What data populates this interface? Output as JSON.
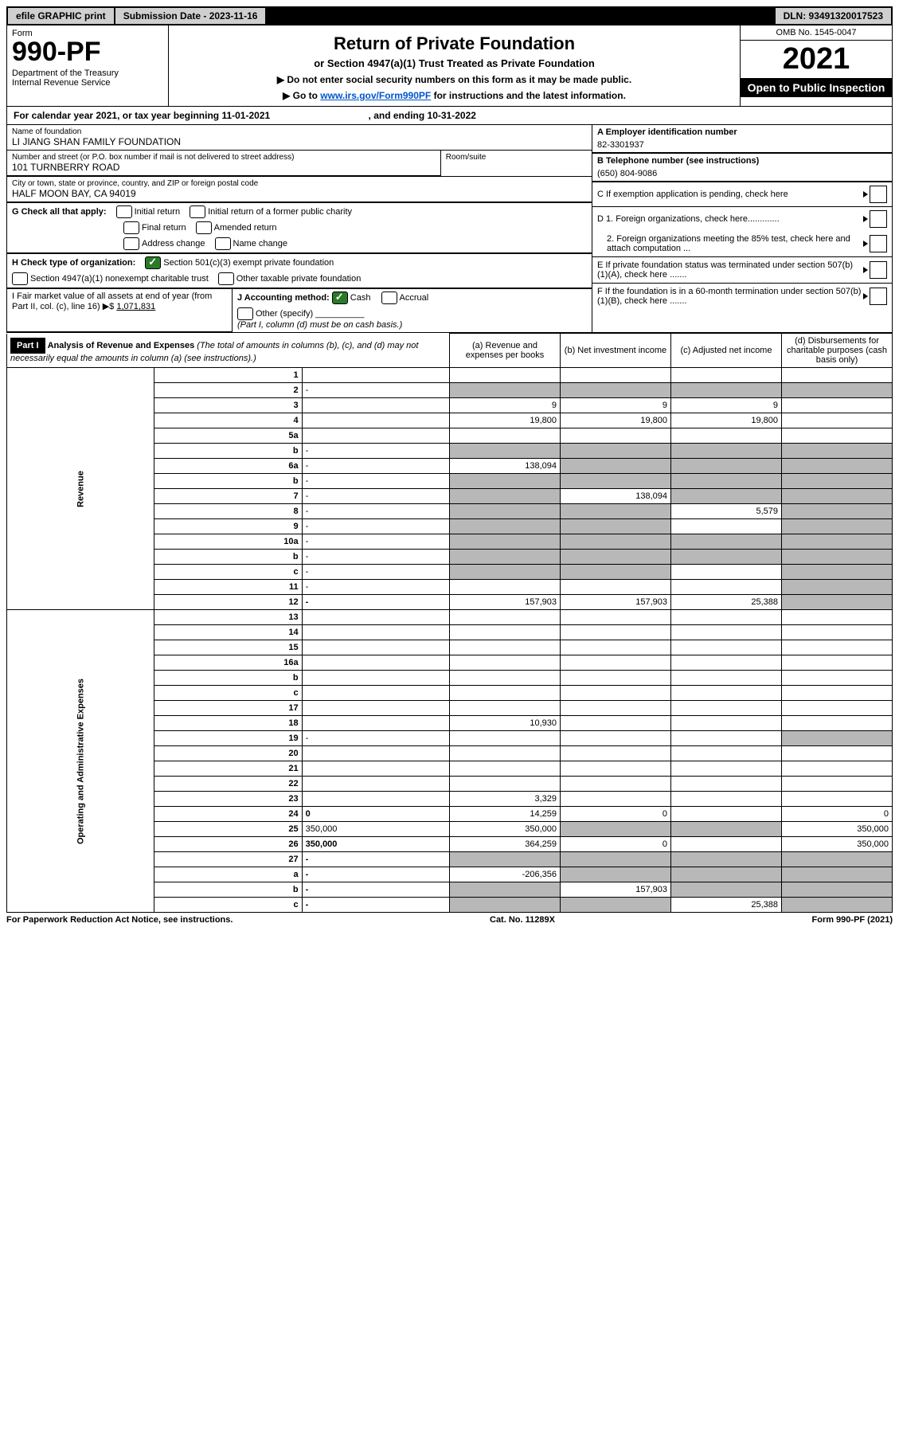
{
  "topbar": {
    "efile": "efile GRAPHIC print",
    "submission": "Submission Date - 2023-11-16",
    "dln": "DLN: 93491320017523"
  },
  "header": {
    "form_label": "Form",
    "form_num": "990-PF",
    "dept": "Department of the Treasury\nInternal Revenue Service",
    "title": "Return of Private Foundation",
    "subtitle": "or Section 4947(a)(1) Trust Treated as Private Foundation",
    "instr1": "▶ Do not enter social security numbers on this form as it may be made public.",
    "instr2": "▶ Go to ",
    "instr2_link": "www.irs.gov/Form990PF",
    "instr2_tail": " for instructions and the latest information.",
    "omb": "OMB No. 1545-0047",
    "year": "2021",
    "open": "Open to Public Inspection"
  },
  "cal": {
    "prefix": "For calendar year 2021, or tax year beginning ",
    "begin": "11-01-2021",
    "mid": " , and ending ",
    "end": "10-31-2022"
  },
  "name": {
    "label": "Name of foundation",
    "value": "LI JIANG SHAN FAMILY FOUNDATION"
  },
  "addr": {
    "label": "Number and street (or P.O. box number if mail is not delivered to street address)",
    "value": "101 TURNBERRY ROAD",
    "room_label": "Room/suite"
  },
  "city": {
    "label": "City or town, state or province, country, and ZIP or foreign postal code",
    "value": "HALF MOON BAY, CA  94019"
  },
  "rightA": {
    "label": "A Employer identification number",
    "value": "82-3301937"
  },
  "rightB": {
    "label": "B Telephone number (see instructions)",
    "value": "(650) 804-9086"
  },
  "rightC": "C If exemption application is pending, check here",
  "rightD1": "D 1. Foreign organizations, check here.............",
  "rightD2": "2. Foreign organizations meeting the 85% test, check here and attach computation ...",
  "rightE": "E If private foundation status was terminated under section 507(b)(1)(A), check here .......",
  "rightF": "F If the foundation is in a 60-month termination under section 507(b)(1)(B), check here .......",
  "G": {
    "label": "G Check all that apply:",
    "opts": [
      "Initial return",
      "Initial return of a former public charity",
      "Final return",
      "Amended return",
      "Address change",
      "Name change"
    ]
  },
  "H": {
    "label": "H Check type of organization:",
    "o1": "Section 501(c)(3) exempt private foundation",
    "o2": "Section 4947(a)(1) nonexempt charitable trust",
    "o3": "Other taxable private foundation"
  },
  "I": {
    "label": "I Fair market value of all assets at end of year (from Part II, col. (c), line 16) ▶$",
    "value": "1,071,831"
  },
  "J": {
    "label": "J Accounting method:",
    "cash": "Cash",
    "accrual": "Accrual",
    "other": "Other (specify)",
    "note": "(Part I, column (d) must be on cash basis.)"
  },
  "part1": {
    "label": "Part I",
    "title": "Analysis of Revenue and Expenses",
    "sub": "(The total of amounts in columns (b), (c), and (d) may not necessarily equal the amounts in column (a) (see instructions).)",
    "col_a": "(a) Revenue and expenses per books",
    "col_b": "(b) Net investment income",
    "col_c": "(c) Adjusted net income",
    "col_d": "(d) Disbursements for charitable purposes (cash basis only)"
  },
  "vlabels": {
    "rev": "Revenue",
    "exp": "Operating and Administrative Expenses"
  },
  "rows": [
    {
      "n": "1",
      "d": "",
      "a": "",
      "b": "",
      "c": ""
    },
    {
      "n": "2",
      "d": "-",
      "a": "-",
      "b": "-",
      "c": "-",
      "shade_all": true
    },
    {
      "n": "3",
      "d": "",
      "a": "9",
      "b": "9",
      "c": "9"
    },
    {
      "n": "4",
      "d": "",
      "a": "19,800",
      "b": "19,800",
      "c": "19,800"
    },
    {
      "n": "5a",
      "d": "",
      "a": "",
      "b": "",
      "c": ""
    },
    {
      "n": "b",
      "d": "-",
      "a": "-",
      "b": "-",
      "c": "-",
      "shade_all": true,
      "inset": true
    },
    {
      "n": "6a",
      "d": "-",
      "a": "138,094",
      "b": "-",
      "c": "-",
      "shade_bcd": true
    },
    {
      "n": "b",
      "d": "-",
      "a": "-",
      "b": "-",
      "c": "-",
      "shade_all": true
    },
    {
      "n": "7",
      "d": "-",
      "a": "-",
      "b": "138,094",
      "c": "-",
      "shade_acd": true
    },
    {
      "n": "8",
      "d": "-",
      "a": "-",
      "b": "-",
      "c": "5,579",
      "shade_abd": true
    },
    {
      "n": "9",
      "d": "-",
      "a": "-",
      "b": "-",
      "c": "",
      "shade_abd": true
    },
    {
      "n": "10a",
      "d": "-",
      "a": "-",
      "b": "-",
      "c": "-",
      "shade_all": true,
      "inset": true
    },
    {
      "n": "b",
      "d": "-",
      "a": "-",
      "b": "-",
      "c": "-",
      "shade_all": true
    },
    {
      "n": "c",
      "d": "-",
      "a": "-",
      "b": "-",
      "c": "",
      "shade_abd": true
    },
    {
      "n": "11",
      "d": "-",
      "a": "",
      "b": "",
      "c": "",
      "shade_d": true
    },
    {
      "n": "12",
      "d": "-",
      "a": "157,903",
      "b": "157,903",
      "c": "25,388",
      "bold": true,
      "shade_d": true
    },
    {
      "n": "13",
      "d": "",
      "a": "",
      "b": "",
      "c": ""
    },
    {
      "n": "14",
      "d": "",
      "a": "",
      "b": "",
      "c": ""
    },
    {
      "n": "15",
      "d": "",
      "a": "",
      "b": "",
      "c": ""
    },
    {
      "n": "16a",
      "d": "",
      "a": "",
      "b": "",
      "c": ""
    },
    {
      "n": "b",
      "d": "",
      "a": "",
      "b": "",
      "c": ""
    },
    {
      "n": "c",
      "d": "",
      "a": "",
      "b": "",
      "c": ""
    },
    {
      "n": "17",
      "d": "",
      "a": "",
      "b": "",
      "c": ""
    },
    {
      "n": "18",
      "d": "",
      "a": "10,930",
      "b": "",
      "c": ""
    },
    {
      "n": "19",
      "d": "-",
      "a": "",
      "b": "",
      "c": "",
      "shade_d": true
    },
    {
      "n": "20",
      "d": "",
      "a": "",
      "b": "",
      "c": ""
    },
    {
      "n": "21",
      "d": "",
      "a": "",
      "b": "",
      "c": ""
    },
    {
      "n": "22",
      "d": "",
      "a": "",
      "b": "",
      "c": ""
    },
    {
      "n": "23",
      "d": "",
      "a": "3,329",
      "b": "",
      "c": "",
      "icon": true
    },
    {
      "n": "24",
      "d": "0",
      "a": "14,259",
      "b": "0",
      "c": "",
      "bold": true
    },
    {
      "n": "25",
      "d": "350,000",
      "a": "350,000",
      "b": "-",
      "c": "-",
      "shade_bc": true
    },
    {
      "n": "26",
      "d": "350,000",
      "a": "364,259",
      "b": "0",
      "c": "",
      "bold": true
    },
    {
      "n": "27",
      "d": "-",
      "a": "-",
      "b": "-",
      "c": "-",
      "shade_all": true,
      "bold": true
    },
    {
      "n": "a",
      "d": "-",
      "a": "-206,356",
      "b": "-",
      "c": "-",
      "bold": true,
      "shade_bcd": true
    },
    {
      "n": "b",
      "d": "-",
      "a": "-",
      "b": "157,903",
      "c": "-",
      "bold": true,
      "shade_acd": true
    },
    {
      "n": "c",
      "d": "-",
      "a": "-",
      "b": "-",
      "c": "25,388",
      "bold": true,
      "shade_abd": true
    }
  ],
  "footer": {
    "left": "For Paperwork Reduction Act Notice, see instructions.",
    "mid": "Cat. No. 11289X",
    "right": "Form 990-PF (2021)"
  }
}
